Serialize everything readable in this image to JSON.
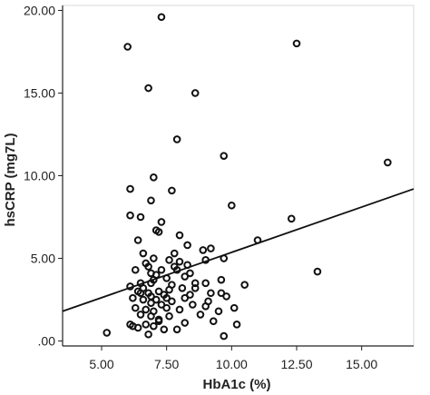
{
  "chart_data": {
    "type": "scatter",
    "title": "",
    "xlabel": "HbA1c (%)",
    "ylabel": "hsCRP (mg7L)",
    "xlim": [
      3.5,
      17.0
    ],
    "ylim": [
      -0.3,
      20.3
    ],
    "x_ticks": [
      5.0,
      7.5,
      10.0,
      12.5,
      15.0
    ],
    "x_tick_labels": [
      "5.00",
      "7.50",
      "10.00",
      "12.50",
      "15.00"
    ],
    "y_ticks": [
      0,
      5,
      10,
      15,
      20
    ],
    "y_tick_labels": [
      ".00",
      "5.00",
      "10.00",
      "15.00",
      "20.00"
    ],
    "grid": false,
    "legend": "none",
    "marker": "open-circle",
    "fit_line": {
      "x": [
        3.5,
        17.0
      ],
      "y": [
        1.8,
        9.2
      ]
    },
    "points": [
      [
        5.2,
        0.5
      ],
      [
        6.0,
        17.8
      ],
      [
        6.8,
        15.3
      ],
      [
        7.3,
        19.6
      ],
      [
        8.6,
        15.0
      ],
      [
        12.5,
        18.0
      ],
      [
        16.0,
        10.8
      ],
      [
        7.9,
        12.2
      ],
      [
        9.7,
        11.2
      ],
      [
        6.1,
        9.2
      ],
      [
        7.0,
        9.9
      ],
      [
        7.7,
        9.1
      ],
      [
        6.9,
        8.5
      ],
      [
        10.0,
        8.2
      ],
      [
        12.3,
        7.4
      ],
      [
        6.1,
        7.6
      ],
      [
        6.5,
        7.5
      ],
      [
        7.3,
        7.2
      ],
      [
        7.1,
        6.7
      ],
      [
        7.2,
        6.6
      ],
      [
        11.0,
        6.1
      ],
      [
        6.4,
        6.1
      ],
      [
        8.3,
        5.8
      ],
      [
        8.9,
        5.5
      ],
      [
        9.2,
        5.6
      ],
      [
        7.8,
        5.3
      ],
      [
        7.0,
        5.0
      ],
      [
        7.6,
        4.9
      ],
      [
        8.0,
        4.8
      ],
      [
        9.0,
        4.9
      ],
      [
        9.7,
        5.0
      ],
      [
        6.7,
        4.7
      ],
      [
        6.8,
        4.5
      ],
      [
        7.3,
        4.3
      ],
      [
        7.9,
        4.3
      ],
      [
        8.3,
        4.6
      ],
      [
        6.3,
        4.3
      ],
      [
        6.9,
        4.1
      ],
      [
        7.1,
        4.0
      ],
      [
        7.5,
        3.8
      ],
      [
        8.2,
        3.9
      ],
      [
        6.5,
        3.5
      ],
      [
        6.9,
        3.5
      ],
      [
        7.7,
        3.4
      ],
      [
        8.6,
        3.5
      ],
      [
        9.0,
        3.5
      ],
      [
        9.6,
        3.7
      ],
      [
        6.1,
        3.3
      ],
      [
        6.6,
        3.2
      ],
      [
        7.2,
        3.0
      ],
      [
        8.1,
        3.2
      ],
      [
        8.6,
        3.2
      ],
      [
        10.5,
        3.4
      ],
      [
        13.3,
        4.2
      ],
      [
        6.4,
        3.0
      ],
      [
        6.8,
        2.9
      ],
      [
        7.4,
        2.8
      ],
      [
        8.4,
        2.8
      ],
      [
        9.2,
        2.9
      ],
      [
        9.6,
        2.9
      ],
      [
        6.2,
        2.6
      ],
      [
        6.6,
        2.5
      ],
      [
        6.9,
        2.3
      ],
      [
        7.3,
        2.2
      ],
      [
        7.7,
        2.4
      ],
      [
        8.2,
        2.6
      ],
      [
        9.1,
        2.4
      ],
      [
        9.8,
        2.7
      ],
      [
        6.3,
        2.0
      ],
      [
        6.7,
        1.9
      ],
      [
        7.0,
        1.8
      ],
      [
        7.5,
        2.0
      ],
      [
        8.0,
        1.9
      ],
      [
        9.0,
        2.1
      ],
      [
        10.1,
        2.0
      ],
      [
        6.5,
        1.6
      ],
      [
        6.9,
        1.5
      ],
      [
        7.2,
        1.3
      ],
      [
        7.6,
        1.5
      ],
      [
        8.8,
        1.6
      ],
      [
        9.5,
        1.8
      ],
      [
        6.1,
        1.0
      ],
      [
        6.4,
        0.8
      ],
      [
        6.7,
        1.0
      ],
      [
        7.0,
        0.9
      ],
      [
        7.4,
        0.7
      ],
      [
        7.9,
        0.7
      ],
      [
        8.2,
        1.1
      ],
      [
        9.7,
        0.3
      ],
      [
        6.2,
        0.9
      ],
      [
        6.8,
        0.4
      ],
      [
        7.2,
        1.2
      ],
      [
        7.5,
        2.6
      ],
      [
        8.5,
        2.2
      ],
      [
        9.3,
        1.2
      ],
      [
        10.2,
        1.0
      ],
      [
        7.0,
        3.7
      ],
      [
        7.8,
        4.5
      ],
      [
        6.6,
        5.3
      ],
      [
        8.0,
        6.4
      ],
      [
        6.9,
        2.7
      ],
      [
        7.6,
        3.1
      ],
      [
        8.4,
        4.1
      ],
      [
        7.1,
        2.5
      ],
      [
        6.5,
        2.9
      ]
    ]
  }
}
